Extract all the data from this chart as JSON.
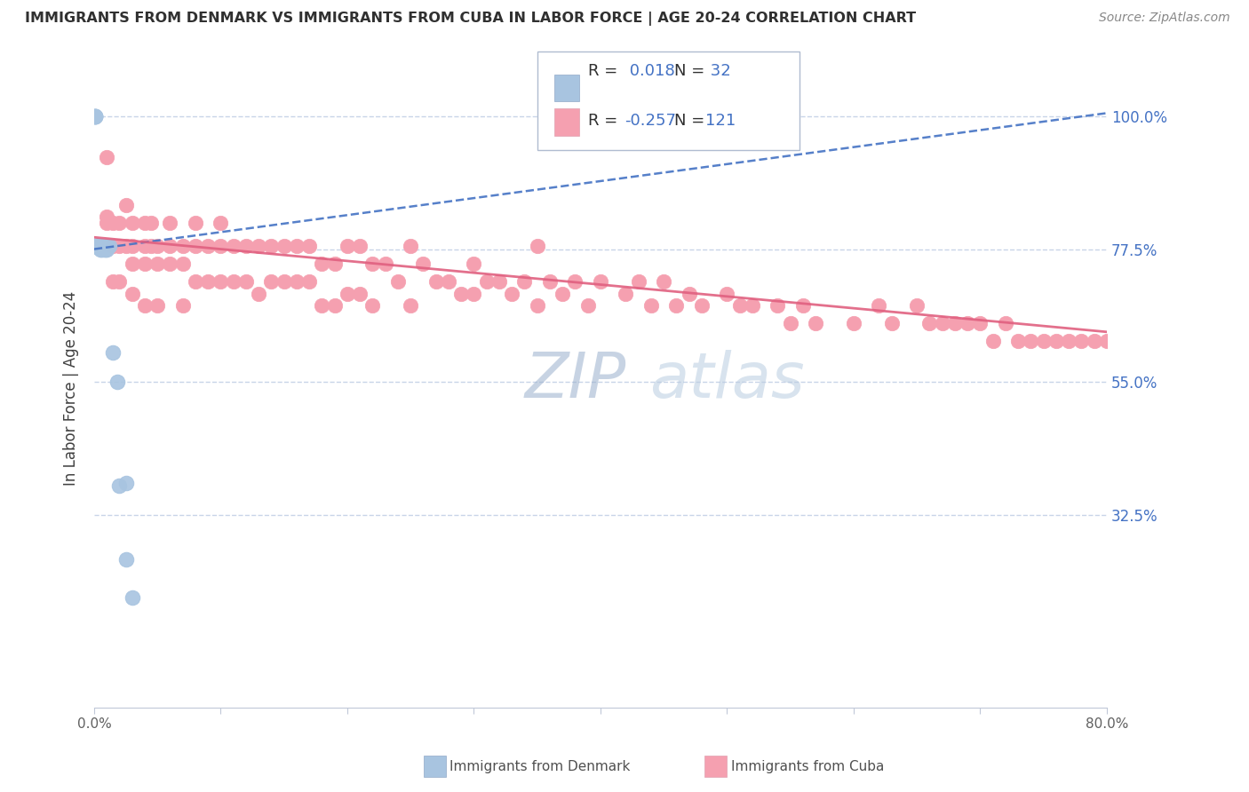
{
  "title": "IMMIGRANTS FROM DENMARK VS IMMIGRANTS FROM CUBA IN LABOR FORCE | AGE 20-24 CORRELATION CHART",
  "source": "Source: ZipAtlas.com",
  "ylabel": "In Labor Force | Age 20-24",
  "denmark_color": "#a8c4e0",
  "cuba_color": "#f5a0b0",
  "denmark_line_color": "#4472c4",
  "cuba_line_color": "#e06080",
  "denmark_r": 0.018,
  "denmark_n": 32,
  "cuba_r": -0.257,
  "cuba_n": 121,
  "xmin": 0.0,
  "xmax": 0.8,
  "ymin": 0.0,
  "ymax": 1.08,
  "background_color": "#ffffff",
  "grid_color": "#c8d4e8",
  "title_color": "#303030",
  "axis_label_color": "#404040",
  "right_tick_color": "#4472c4",
  "watermark_color": "#c8d8e8",
  "legend_r_color": "#4472c4",
  "legend_n_color": "#4472c4",
  "ytick_vals": [
    0.325,
    0.55,
    0.775,
    1.0
  ],
  "ytick_labels": [
    "32.5%",
    "55.0%",
    "77.5%",
    "100.0%"
  ],
  "denmark_line_y0": 0.775,
  "denmark_line_y1": 1.005,
  "cuba_line_y0": 0.795,
  "cuba_line_y1": 0.635,
  "dk_x": [
    0.001,
    0.001,
    0.001,
    0.001,
    0.001,
    0.001,
    0.001,
    0.001,
    0.002,
    0.002,
    0.002,
    0.003,
    0.003,
    0.003,
    0.004,
    0.004,
    0.005,
    0.005,
    0.006,
    0.006,
    0.007,
    0.008,
    0.009,
    0.01,
    0.01,
    0.012,
    0.015,
    0.018,
    0.02,
    0.025,
    0.025,
    0.03
  ],
  "dk_y": [
    1.0,
    1.0,
    1.0,
    1.0,
    1.0,
    0.78,
    0.78,
    0.78,
    0.78,
    0.78,
    0.78,
    0.78,
    0.78,
    0.78,
    0.78,
    0.78,
    0.78,
    0.775,
    0.775,
    0.78,
    0.78,
    0.775,
    0.775,
    0.775,
    0.78,
    0.78,
    0.6,
    0.55,
    0.375,
    0.25,
    0.38,
    0.185
  ],
  "cu_x": [
    0.01,
    0.01,
    0.01,
    0.015,
    0.015,
    0.015,
    0.02,
    0.02,
    0.02,
    0.025,
    0.025,
    0.03,
    0.03,
    0.03,
    0.03,
    0.04,
    0.04,
    0.04,
    0.04,
    0.045,
    0.045,
    0.05,
    0.05,
    0.05,
    0.06,
    0.06,
    0.06,
    0.07,
    0.07,
    0.07,
    0.08,
    0.08,
    0.08,
    0.09,
    0.09,
    0.1,
    0.1,
    0.1,
    0.11,
    0.11,
    0.12,
    0.12,
    0.13,
    0.13,
    0.14,
    0.14,
    0.15,
    0.15,
    0.16,
    0.16,
    0.17,
    0.17,
    0.18,
    0.18,
    0.19,
    0.19,
    0.2,
    0.2,
    0.21,
    0.21,
    0.22,
    0.22,
    0.23,
    0.24,
    0.25,
    0.25,
    0.26,
    0.27,
    0.28,
    0.29,
    0.3,
    0.3,
    0.31,
    0.32,
    0.33,
    0.34,
    0.35,
    0.35,
    0.36,
    0.37,
    0.38,
    0.39,
    0.4,
    0.42,
    0.43,
    0.44,
    0.45,
    0.46,
    0.47,
    0.48,
    0.5,
    0.51,
    0.52,
    0.54,
    0.55,
    0.56,
    0.57,
    0.6,
    0.62,
    0.63,
    0.65,
    0.66,
    0.67,
    0.68,
    0.69,
    0.7,
    0.71,
    0.72,
    0.73,
    0.74,
    0.75,
    0.76,
    0.77,
    0.78,
    0.79,
    0.8,
    0.81,
    0.82,
    0.83,
    0.84,
    0.85
  ],
  "cu_y": [
    0.93,
    0.83,
    0.82,
    0.82,
    0.78,
    0.72,
    0.82,
    0.78,
    0.72,
    0.85,
    0.78,
    0.82,
    0.78,
    0.75,
    0.7,
    0.82,
    0.78,
    0.75,
    0.68,
    0.82,
    0.78,
    0.78,
    0.75,
    0.68,
    0.82,
    0.78,
    0.75,
    0.78,
    0.75,
    0.68,
    0.82,
    0.78,
    0.72,
    0.78,
    0.72,
    0.82,
    0.78,
    0.72,
    0.78,
    0.72,
    0.78,
    0.72,
    0.78,
    0.7,
    0.78,
    0.72,
    0.78,
    0.72,
    0.78,
    0.72,
    0.78,
    0.72,
    0.75,
    0.68,
    0.75,
    0.68,
    0.78,
    0.7,
    0.78,
    0.7,
    0.75,
    0.68,
    0.75,
    0.72,
    0.78,
    0.68,
    0.75,
    0.72,
    0.72,
    0.7,
    0.75,
    0.7,
    0.72,
    0.72,
    0.7,
    0.72,
    0.78,
    0.68,
    0.72,
    0.7,
    0.72,
    0.68,
    0.72,
    0.7,
    0.72,
    0.68,
    0.72,
    0.68,
    0.7,
    0.68,
    0.7,
    0.68,
    0.68,
    0.68,
    0.65,
    0.68,
    0.65,
    0.65,
    0.68,
    0.65,
    0.68,
    0.65,
    0.65,
    0.65,
    0.65,
    0.65,
    0.62,
    0.65,
    0.62,
    0.62,
    0.62,
    0.62,
    0.62,
    0.62,
    0.62,
    0.62,
    0.62,
    0.6,
    0.6,
    0.6,
    0.6
  ]
}
